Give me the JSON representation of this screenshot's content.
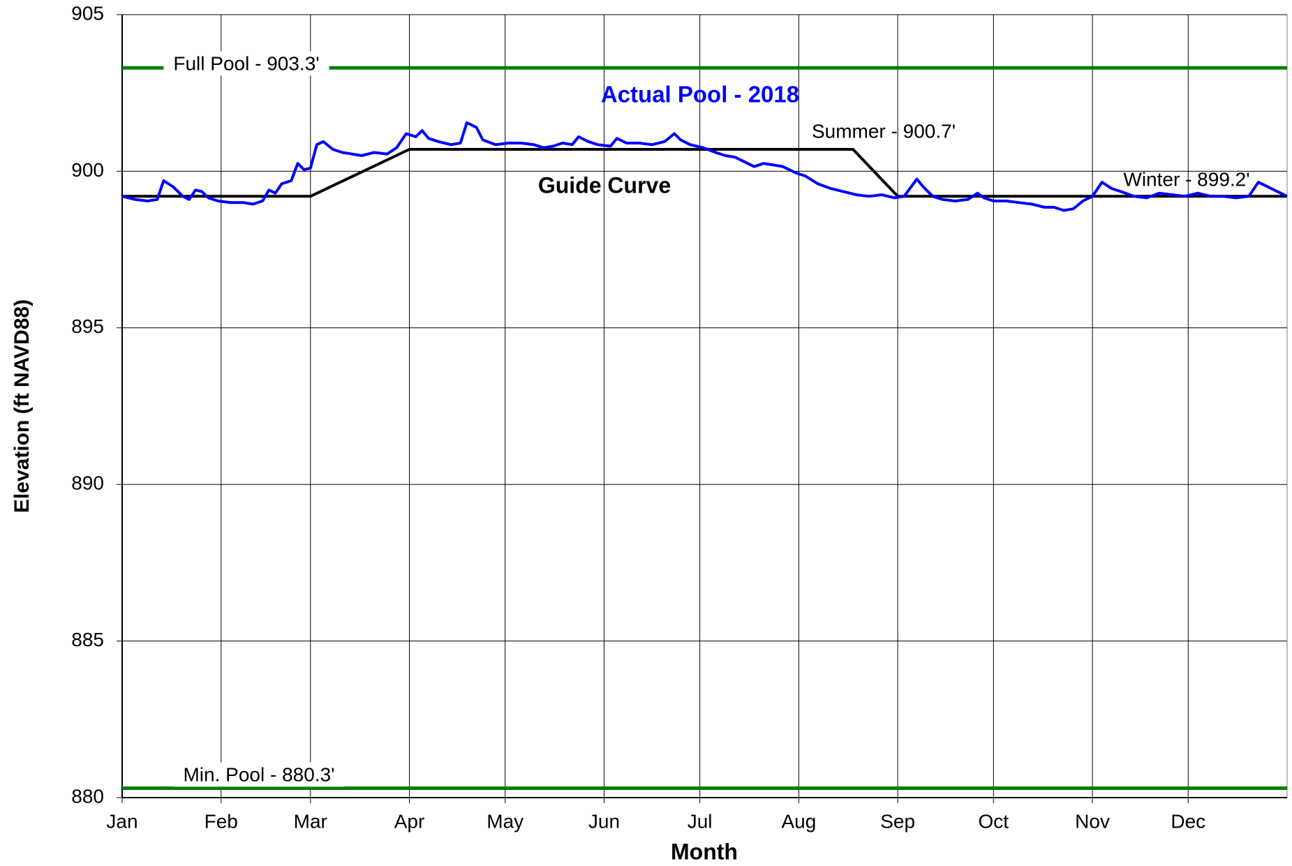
{
  "chart_data": {
    "type": "line",
    "xlabel": "Month",
    "ylabel": "Elevation (ft NAVD88)",
    "xlim": [
      0,
      365
    ],
    "xticks": [
      {
        "value": 0,
        "label": "Jan"
      },
      {
        "value": 31,
        "label": "Feb"
      },
      {
        "value": 59,
        "label": "Mar"
      },
      {
        "value": 90,
        "label": "Apr"
      },
      {
        "value": 120,
        "label": "May"
      },
      {
        "value": 151,
        "label": "Jun"
      },
      {
        "value": 181,
        "label": "Jul"
      },
      {
        "value": 212,
        "label": "Aug"
      },
      {
        "value": 243,
        "label": "Sep"
      },
      {
        "value": 273,
        "label": "Oct"
      },
      {
        "value": 304,
        "label": "Nov"
      },
      {
        "value": 334,
        "label": "Dec"
      }
    ],
    "ylim": [
      880,
      905
    ],
    "yticks": [
      880,
      885,
      890,
      895,
      900,
      905
    ],
    "grid": true,
    "annotations": [
      "Summer - 900.7'",
      "Winter - 899.2'"
    ],
    "series": [
      {
        "name": "Actual Pool - 2018",
        "color": "#0000ff",
        "x": [
          0,
          4,
          8,
          11,
          13,
          16,
          19,
          21,
          23,
          25,
          27,
          30,
          34,
          38,
          41,
          44,
          46,
          48,
          50,
          53,
          55,
          57,
          59,
          61,
          63,
          66,
          69,
          72,
          75,
          79,
          83,
          86,
          89,
          92,
          94,
          96,
          99,
          103,
          106,
          108,
          111,
          113,
          117,
          121,
          125,
          129,
          132,
          135,
          138,
          141,
          143,
          146,
          149,
          153,
          155,
          158,
          162,
          166,
          170,
          173,
          175,
          178,
          182,
          186,
          189,
          192,
          195,
          198,
          201,
          204,
          207,
          211,
          214,
          218,
          222,
          226,
          230,
          234,
          238,
          240,
          242,
          245,
          249,
          251,
          254,
          257,
          261,
          265,
          268,
          270,
          273,
          277,
          281,
          285,
          289,
          292,
          295,
          298,
          301,
          304,
          307,
          310,
          313,
          317,
          321,
          325,
          329,
          333,
          337,
          341,
          345,
          349,
          353,
          356,
          360,
          365
        ],
        "values": [
          899.2,
          899.1,
          899.05,
          899.1,
          899.7,
          899.5,
          899.2,
          899.1,
          899.4,
          899.35,
          899.15,
          899.05,
          899.0,
          899.0,
          898.95,
          899.05,
          899.4,
          899.3,
          899.6,
          899.7,
          900.25,
          900.05,
          900.1,
          900.85,
          900.95,
          900.7,
          900.6,
          900.55,
          900.5,
          900.6,
          900.55,
          900.75,
          901.2,
          901.1,
          901.3,
          901.05,
          900.95,
          900.85,
          900.9,
          901.55,
          901.4,
          901.0,
          900.85,
          900.9,
          900.9,
          900.85,
          900.75,
          900.8,
          900.9,
          900.85,
          901.1,
          900.95,
          900.85,
          900.8,
          901.05,
          900.9,
          900.9,
          900.85,
          900.95,
          901.2,
          901.0,
          900.85,
          900.75,
          900.6,
          900.5,
          900.45,
          900.3,
          900.15,
          900.25,
          900.2,
          900.15,
          899.95,
          899.85,
          899.6,
          899.45,
          899.35,
          899.25,
          899.2,
          899.25,
          899.2,
          899.15,
          899.2,
          899.75,
          899.5,
          899.2,
          899.1,
          899.05,
          899.1,
          899.3,
          899.15,
          899.05,
          899.05,
          899.0,
          898.95,
          898.85,
          898.85,
          898.75,
          898.8,
          899.05,
          899.2,
          899.65,
          899.45,
          899.35,
          899.2,
          899.15,
          899.3,
          899.25,
          899.2,
          899.3,
          899.2,
          899.2,
          899.15,
          899.2,
          899.65,
          899.45,
          899.2
        ]
      },
      {
        "name": "Guide Curve",
        "color": "#000000",
        "x": [
          0,
          59,
          90,
          229,
          243,
          365
        ],
        "values": [
          899.2,
          899.2,
          900.7,
          900.7,
          899.2,
          899.2
        ]
      },
      {
        "name": "Full Pool - 903.3'",
        "color": "#008000",
        "x": [
          0,
          365
        ],
        "values": [
          903.3,
          903.3
        ]
      },
      {
        "name": "Min. Pool - 880.3'",
        "color": "#008000",
        "x": [
          0,
          365
        ],
        "values": [
          880.3,
          880.3
        ]
      }
    ]
  }
}
